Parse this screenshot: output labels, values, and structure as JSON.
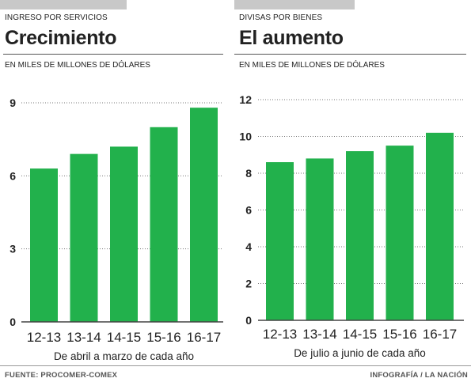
{
  "chart_data": [
    {
      "type": "bar",
      "kicker": "INGRESO POR SERVICIOS",
      "title": "Crecimiento",
      "unit_label": "EN MILES DE MILLONES DE DÓLARES",
      "categories": [
        "12-13",
        "13-14",
        "14-15",
        "15-16",
        "16-17"
      ],
      "values": [
        6.3,
        6.9,
        7.2,
        8.0,
        8.8
      ],
      "yticks": [
        "0",
        "3",
        "6",
        "9"
      ],
      "ylim": [
        0,
        9
      ],
      "xlabel": "De abril a marzo de cada año",
      "bar_color": "#22b14c",
      "grid": true
    },
    {
      "type": "bar",
      "kicker": "DIVISAS POR BIENES",
      "title": "El aumento",
      "unit_label": "EN MILES DE MILLONES DE DÓLARES",
      "categories": [
        "12-13",
        "13-14",
        "14-15",
        "15-16",
        "16-17"
      ],
      "values": [
        8.6,
        8.8,
        9.2,
        9.5,
        10.2
      ],
      "yticks": [
        "0",
        "2",
        "4",
        "6",
        "8",
        "10",
        "12"
      ],
      "ylim": [
        0,
        12
      ],
      "xlabel": "De julio a junio de cada año",
      "bar_color": "#22b14c",
      "grid": true
    }
  ],
  "footer": {
    "source": "FUENTE: PROCOMER-COMEX",
    "credit": "INFOGRAFÍA / LA NACIÓN"
  }
}
